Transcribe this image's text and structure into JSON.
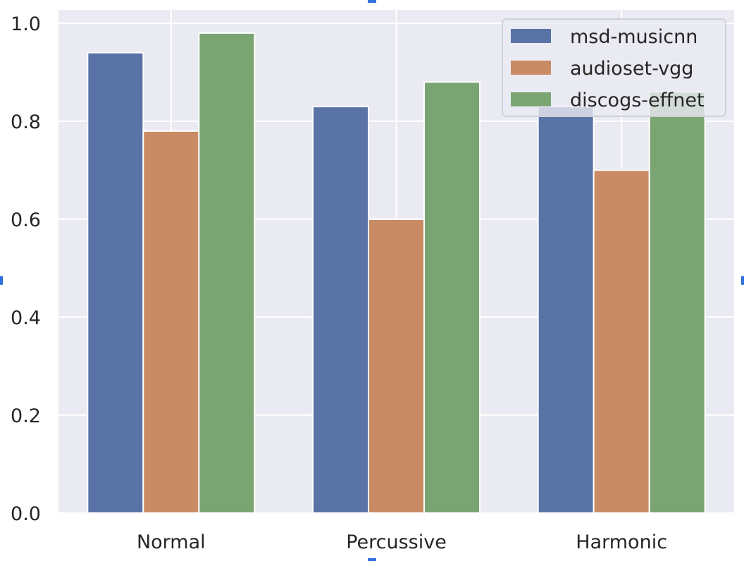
{
  "chart_data": {
    "type": "bar",
    "categories": [
      "Normal",
      "Percussive",
      "Harmonic"
    ],
    "series": [
      {
        "name": "msd-musicnn",
        "values": [
          0.94,
          0.83,
          0.83
        ],
        "color": "#5a73a6"
      },
      {
        "name": "audioset-vgg",
        "values": [
          0.78,
          0.6,
          0.7
        ],
        "color": "#c98b63"
      },
      {
        "name": "discogs-effnet",
        "values": [
          0.98,
          0.88,
          0.86
        ],
        "color": "#7aa573"
      }
    ],
    "ylim": [
      0,
      1.0
    ],
    "yticks": [
      0.0,
      0.2,
      0.4,
      0.6,
      0.8,
      1.0
    ],
    "ytick_labels": [
      "0.0",
      "0.2",
      "0.4",
      "0.6",
      "0.8",
      "1.0"
    ],
    "title": "",
    "xlabel": "",
    "ylabel": "",
    "grid": true,
    "legend_position": "top-right",
    "background_color": "#eaeaf2",
    "grid_color": "#ffffff"
  }
}
